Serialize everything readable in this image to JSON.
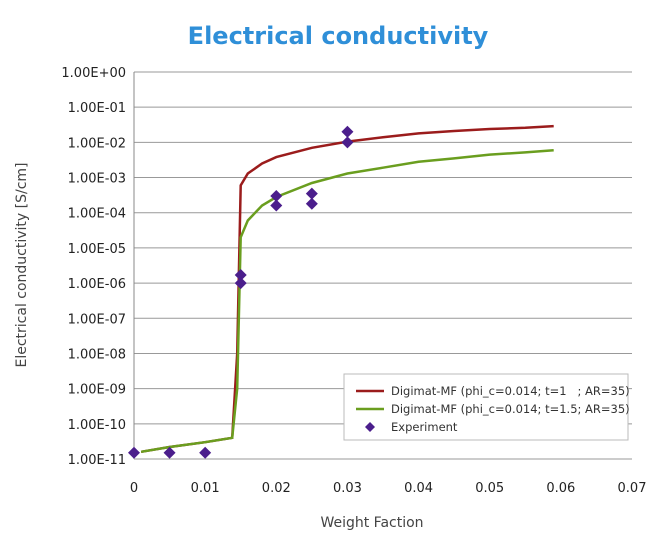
{
  "chart_data": {
    "type": "line",
    "title": "Electrical conductivity",
    "xlabel": "Weight Faction",
    "ylabel": "Electrical conductivity [S/cm]",
    "xlim": [
      0,
      0.07
    ],
    "ylim": [
      1e-11,
      1
    ],
    "yscale": "log",
    "grid": true,
    "legend_position": "bottom-right",
    "x_ticks": [
      "0",
      "0.01",
      "0.02",
      "0.03",
      "0.04",
      "0.05",
      "0.06",
      "0.07"
    ],
    "y_ticks": [
      "1.00E-11",
      "1.00E-10",
      "1.00E-09",
      "1.00E-08",
      "1.00E-07",
      "1.00E-06",
      "1.00E-05",
      "1.00E-04",
      "1.00E-03",
      "1.00E-02",
      "1.00E-01",
      "1.00E+00"
    ],
    "series": [
      {
        "name": "Digimat-MF (phi_c=0.014; t=1   ; AR=35)",
        "kind": "line",
        "color": "#9b1c1c",
        "x": [
          0.001,
          0.005,
          0.01,
          0.0138,
          0.0145,
          0.015,
          0.016,
          0.018,
          0.02,
          0.025,
          0.03,
          0.035,
          0.04,
          0.045,
          0.05,
          0.055,
          0.059
        ],
        "y": [
          1.6e-11,
          2.2e-11,
          3e-11,
          4e-11,
          1e-08,
          0.0006,
          0.0013,
          0.0025,
          0.0038,
          0.007,
          0.0105,
          0.014,
          0.018,
          0.021,
          0.024,
          0.026,
          0.029
        ]
      },
      {
        "name": "Digimat-MF (phi_c=0.014; t=1.5; AR=35)",
        "kind": "line",
        "color": "#6a9e1f",
        "x": [
          0.001,
          0.005,
          0.01,
          0.0138,
          0.0145,
          0.015,
          0.016,
          0.018,
          0.02,
          0.025,
          0.03,
          0.035,
          0.04,
          0.045,
          0.05,
          0.055,
          0.059
        ],
        "y": [
          1.6e-11,
          2.2e-11,
          3e-11,
          4e-11,
          1e-09,
          2e-05,
          6e-05,
          0.00016,
          0.00028,
          0.0007,
          0.0013,
          0.0019,
          0.0028,
          0.0035,
          0.0045,
          0.0052,
          0.006
        ]
      },
      {
        "name": "Experiment",
        "kind": "scatter",
        "color": "#4b1e8c",
        "x": [
          0,
          0.005,
          0.01,
          0.015,
          0.015,
          0.02,
          0.02,
          0.025,
          0.025,
          0.03,
          0.03
        ],
        "y": [
          1.5e-11,
          1.5e-11,
          1.5e-11,
          1.7e-06,
          1e-06,
          0.0003,
          0.00016,
          0.00035,
          0.00018,
          0.02,
          0.01
        ]
      }
    ]
  }
}
